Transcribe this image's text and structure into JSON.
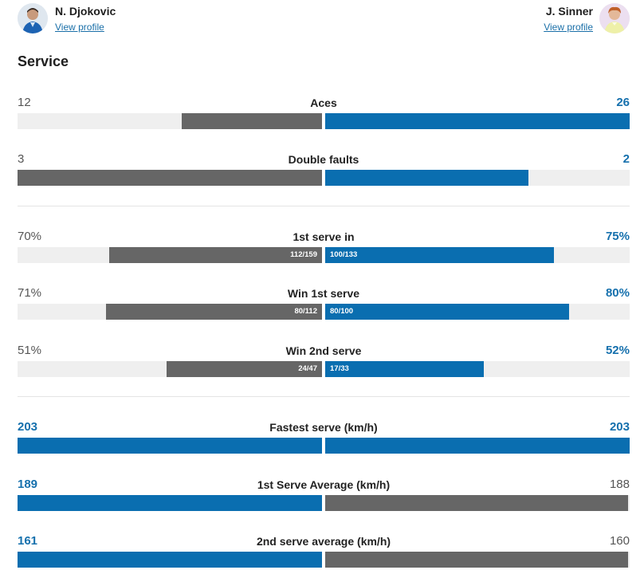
{
  "players": {
    "left": {
      "name": "N. Djokovic",
      "link": "View profile",
      "avatar_icon": "player-avatar-icon",
      "color": "#666666"
    },
    "right": {
      "name": "J. Sinner",
      "link": "View profile",
      "avatar_icon": "player-avatar-icon",
      "color": "#0a6eb0"
    }
  },
  "section": {
    "title": "Service"
  },
  "stats": [
    {
      "label": "Aces",
      "left": "12",
      "right": "26",
      "left_frac": "",
      "right_frac": "",
      "left_level": 0.46,
      "right_level": 1.0,
      "left_color": "gray",
      "right_color": "blue",
      "winner": "right"
    },
    {
      "label": "Double faults",
      "left": "3",
      "right": "2",
      "left_frac": "",
      "right_frac": "",
      "left_level": 1.0,
      "right_level": 0.667,
      "left_color": "gray",
      "right_color": "blue",
      "winner": "right"
    },
    {
      "label": "1st serve in",
      "left": "70%",
      "right": "75%",
      "left_frac": "112/159",
      "right_frac": "100/133",
      "left_level": 0.7,
      "right_level": 0.75,
      "left_color": "gray",
      "right_color": "blue",
      "winner": "right"
    },
    {
      "label": "Win 1st serve",
      "left": "71%",
      "right": "80%",
      "left_frac": "80/112",
      "right_frac": "80/100",
      "left_level": 0.71,
      "right_level": 0.8,
      "left_color": "gray",
      "right_color": "blue",
      "winner": "right"
    },
    {
      "label": "Win 2nd serve",
      "left": "51%",
      "right": "52%",
      "left_frac": "24/47",
      "right_frac": "17/33",
      "left_level": 0.51,
      "right_level": 0.52,
      "left_color": "gray",
      "right_color": "blue",
      "winner": "right"
    },
    {
      "label": "Fastest serve (km/h)",
      "left": "203",
      "right": "203",
      "left_frac": "",
      "right_frac": "",
      "left_level": 1.0,
      "right_level": 1.0,
      "left_color": "blue",
      "right_color": "blue",
      "winner": "both"
    },
    {
      "label": "1st Serve Average (km/h)",
      "left": "189",
      "right": "188",
      "left_frac": "",
      "right_frac": "",
      "left_level": 1.0,
      "right_level": 0.995,
      "left_color": "blue",
      "right_color": "gray",
      "winner": "left"
    },
    {
      "label": "2nd serve average (km/h)",
      "left": "161",
      "right": "160",
      "left_frac": "",
      "right_frac": "",
      "left_level": 1.0,
      "right_level": 0.994,
      "left_color": "blue",
      "right_color": "gray",
      "winner": "left"
    }
  ]
}
